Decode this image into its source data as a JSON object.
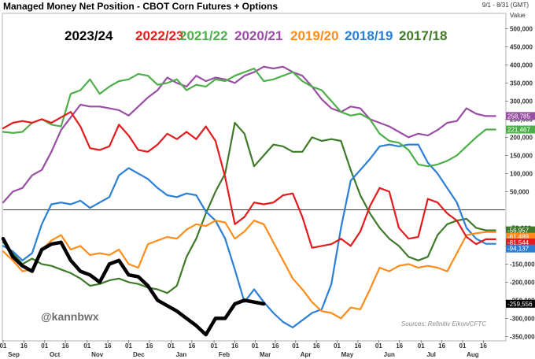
{
  "title": "Managed Money Net Position - CBOT Corn Futures + Options",
  "date_range": "9/1 - 8/31 (GMT)",
  "value_header": "Value",
  "handle": "@kannbwx",
  "source": "Sources: Refinitiv Eikon/CFTC",
  "chart_data": {
    "type": "line",
    "title": "Managed Money Net Position - CBOT Corn Futures + Options",
    "ylabel": "Value",
    "ylim": [
      -360000,
      540000
    ],
    "y_ticks": [
      500000,
      450000,
      400000,
      350000,
      300000,
      250000,
      200000,
      150000,
      100000,
      50000,
      -50000,
      -100000,
      -150000,
      -200000,
      -250000,
      -300000,
      -350000
    ],
    "y_tick_labels": [
      "500,000",
      "450,000",
      "400,000",
      "350,000",
      "300,000",
      "250,000",
      "200,000",
      "150,000",
      "100,000",
      "50,000",
      "-50,000",
      "-100,000",
      "-150,000",
      "-200,000",
      "-250,000",
      "-300,000",
      "-350,000"
    ],
    "x_unit": "weeks from Sep 1",
    "xlim": [
      0,
      52
    ],
    "x_tick_labels": [
      "01",
      "16",
      "01",
      "16",
      "01",
      "16",
      "01",
      "16",
      "01",
      "16",
      "01",
      "16",
      "01",
      "16",
      "01",
      "16",
      "01",
      "16",
      "01",
      "16",
      "01",
      "16",
      "01",
      "16"
    ],
    "x_ticks": [
      0,
      2.15,
      4.3,
      6.45,
      8.7,
      10.85,
      13.0,
      15.15,
      17.4,
      19.55,
      21.85,
      24.0,
      26.1,
      28.2,
      30.3,
      32.45,
      34.6,
      36.75,
      38.9,
      41.05,
      43.3,
      45.45,
      47.6,
      49.75
    ],
    "months": [
      "Sep",
      "Oct",
      "Nov",
      "Dec",
      "Jan",
      "Feb",
      "Mar",
      "Apr",
      "May",
      "Jun",
      "Jul",
      "Aug"
    ],
    "month_positions": [
      1.1,
      5.35,
      9.75,
      14.05,
      18.45,
      22.9,
      27.15,
      31.35,
      35.65,
      40.0,
      44.35,
      48.65
    ],
    "legend": [
      "2023/24",
      "2022/23",
      "2021/22",
      "2020/21",
      "2019/20",
      "2018/19",
      "2017/18"
    ],
    "legend_position": "top",
    "grid": false,
    "zero_line": true,
    "last_value_labels": [
      "258,785",
      "221,467",
      "-56,957",
      "-61,489",
      "-81,544",
      "-94,137",
      "-259,556"
    ],
    "series": [
      {
        "name": "2023/24",
        "color": "#000000",
        "x": [
          0,
          1,
          2,
          3,
          4,
          5,
          6,
          7,
          8,
          9,
          10,
          11,
          12,
          13,
          14,
          15,
          16,
          17,
          18,
          19,
          20,
          21,
          22,
          23,
          24,
          25,
          26,
          27
        ],
        "y": [
          -80000,
          -130000,
          -155000,
          -170000,
          -110000,
          -95000,
          -90000,
          -140000,
          -170000,
          -180000,
          -200000,
          -150000,
          -140000,
          -180000,
          -185000,
          -210000,
          -250000,
          -265000,
          -280000,
          -300000,
          -320000,
          -345000,
          -300000,
          -300000,
          -260000,
          -250000,
          -255000,
          -260000
        ]
      },
      {
        "name": "2022/23",
        "color": "#e41a1c",
        "x": [
          0,
          1,
          2,
          3,
          4,
          5,
          6,
          7,
          8,
          9,
          10,
          11,
          12,
          13,
          14,
          15,
          16,
          17,
          18,
          19,
          20,
          21,
          22,
          23,
          24,
          25,
          26,
          27,
          28,
          29,
          30,
          31,
          32,
          33,
          34,
          35,
          36,
          37,
          38,
          39,
          40,
          41,
          42,
          43,
          44,
          45,
          46,
          47,
          48,
          49,
          50,
          51
        ],
        "y": [
          225000,
          240000,
          245000,
          240000,
          250000,
          240000,
          255000,
          270000,
          230000,
          170000,
          165000,
          175000,
          235000,
          205000,
          165000,
          160000,
          180000,
          210000,
          195000,
          215000,
          195000,
          230000,
          190000,
          90000,
          -40000,
          -20000,
          20000,
          15000,
          20000,
          40000,
          45000,
          -20000,
          -105000,
          -100000,
          -95000,
          -80000,
          -100000,
          -60000,
          10000,
          60000,
          50000,
          -50000,
          -80000,
          -75000,
          30000,
          20000,
          -10000,
          -30000,
          -75000,
          -95000,
          -81544,
          -81544
        ]
      },
      {
        "name": "2021/22",
        "color": "#4daf4a",
        "x": [
          0,
          1,
          2,
          3,
          4,
          5,
          6,
          7,
          8,
          9,
          10,
          11,
          12,
          13,
          14,
          15,
          16,
          17,
          18,
          19,
          20,
          21,
          22,
          23,
          24,
          25,
          26,
          27,
          28,
          29,
          30,
          31,
          32,
          33,
          34,
          35,
          36,
          37,
          38,
          39,
          40,
          41,
          42,
          43,
          44,
          45,
          46,
          47,
          48,
          49,
          50,
          51
        ],
        "y": [
          215000,
          212000,
          215000,
          240000,
          250000,
          235000,
          230000,
          320000,
          330000,
          360000,
          320000,
          340000,
          355000,
          360000,
          375000,
          370000,
          345000,
          350000,
          360000,
          330000,
          345000,
          340000,
          360000,
          355000,
          370000,
          380000,
          390000,
          355000,
          360000,
          370000,
          380000,
          355000,
          340000,
          330000,
          300000,
          270000,
          260000,
          265000,
          250000,
          210000,
          190000,
          185000,
          165000,
          125000,
          120000,
          125000,
          135000,
          150000,
          175000,
          200000,
          221467,
          221467
        ]
      },
      {
        "name": "2020/21",
        "color": "#984ea3",
        "x": [
          0,
          1,
          2,
          3,
          4,
          5,
          6,
          7,
          8,
          9,
          10,
          11,
          12,
          13,
          14,
          15,
          16,
          17,
          18,
          19,
          20,
          21,
          22,
          23,
          24,
          25,
          26,
          27,
          28,
          29,
          30,
          31,
          32,
          33,
          34,
          35,
          36,
          37,
          38,
          39,
          40,
          41,
          42,
          43,
          44,
          45,
          46,
          47,
          48,
          49,
          50,
          51
        ],
        "y": [
          20000,
          50000,
          60000,
          95000,
          110000,
          160000,
          220000,
          255000,
          290000,
          285000,
          285000,
          280000,
          275000,
          260000,
          285000,
          310000,
          330000,
          365000,
          350000,
          340000,
          370000,
          355000,
          365000,
          360000,
          350000,
          370000,
          380000,
          395000,
          390000,
          395000,
          380000,
          370000,
          340000,
          305000,
          280000,
          270000,
          285000,
          280000,
          250000,
          240000,
          230000,
          215000,
          200000,
          210000,
          205000,
          220000,
          240000,
          245000,
          280000,
          265000,
          258785,
          258785
        ]
      },
      {
        "name": "2019/20",
        "color": "#ff8c1a",
        "x": [
          0,
          1,
          2,
          3,
          4,
          5,
          6,
          7,
          8,
          9,
          10,
          11,
          12,
          13,
          14,
          15,
          16,
          17,
          18,
          19,
          20,
          21,
          22,
          23,
          24,
          25,
          26,
          27,
          28,
          29,
          30,
          31,
          32,
          33,
          34,
          35,
          36,
          37,
          38,
          39,
          40,
          41,
          42,
          43,
          44,
          45,
          46,
          47,
          48,
          49,
          50,
          51
        ],
        "y": [
          -115000,
          -140000,
          -170000,
          -165000,
          -110000,
          -85000,
          -70000,
          -110000,
          -100000,
          -125000,
          -120000,
          -125000,
          -110000,
          -150000,
          -160000,
          -95000,
          -85000,
          -75000,
          -80000,
          -55000,
          -40000,
          -45000,
          -30000,
          -35000,
          -80000,
          -60000,
          -30000,
          -40000,
          -90000,
          -140000,
          -190000,
          -220000,
          -255000,
          -280000,
          -285000,
          -300000,
          -270000,
          -275000,
          -220000,
          -160000,
          -170000,
          -155000,
          -150000,
          -160000,
          -155000,
          -160000,
          -170000,
          -120000,
          -70000,
          -65000,
          -61489,
          -61489
        ]
      },
      {
        "name": "2018/19",
        "color": "#2a7fd4",
        "x": [
          0,
          1,
          2,
          3,
          4,
          5,
          6,
          7,
          8,
          9,
          10,
          11,
          12,
          13,
          14,
          15,
          16,
          17,
          18,
          19,
          20,
          21,
          22,
          23,
          24,
          25,
          26,
          27,
          28,
          29,
          30,
          31,
          32,
          33,
          34,
          35,
          36,
          37,
          38,
          39,
          40,
          41,
          42,
          43,
          44,
          45,
          46,
          47,
          48,
          49,
          50,
          51
        ],
        "y": [
          -100000,
          -115000,
          -140000,
          -120000,
          -40000,
          15000,
          20000,
          15000,
          25000,
          5000,
          20000,
          35000,
          95000,
          115000,
          100000,
          85000,
          60000,
          40000,
          35000,
          45000,
          40000,
          -5000,
          -30000,
          -80000,
          -165000,
          -255000,
          -220000,
          -255000,
          -285000,
          -310000,
          -325000,
          -305000,
          -285000,
          -275000,
          -205000,
          -50000,
          80000,
          110000,
          140000,
          175000,
          180000,
          175000,
          180000,
          180000,
          130000,
          100000,
          60000,
          20000,
          -50000,
          -80000,
          -94137,
          -94137
        ]
      },
      {
        "name": "2017/18",
        "color": "#3e7a2a",
        "x": [
          0,
          1,
          2,
          3,
          4,
          5,
          6,
          7,
          8,
          9,
          10,
          11,
          12,
          13,
          14,
          15,
          16,
          17,
          18,
          19,
          20,
          21,
          22,
          23,
          24,
          25,
          26,
          27,
          28,
          29,
          30,
          31,
          32,
          33,
          34,
          35,
          36,
          37,
          38,
          39,
          40,
          41,
          42,
          43,
          44,
          45,
          46,
          47,
          48,
          49,
          50,
          51
        ],
        "y": [
          -90000,
          -120000,
          -150000,
          -135000,
          -150000,
          -155000,
          -165000,
          -175000,
          -190000,
          -210000,
          -205000,
          -195000,
          -190000,
          -200000,
          -205000,
          -215000,
          -220000,
          -230000,
          -210000,
          -130000,
          -80000,
          -10000,
          50000,
          100000,
          240000,
          210000,
          120000,
          150000,
          180000,
          175000,
          160000,
          160000,
          200000,
          190000,
          195000,
          190000,
          110000,
          40000,
          -10000,
          -50000,
          -80000,
          -100000,
          -130000,
          -140000,
          -130000,
          -70000,
          -40000,
          -30000,
          -25000,
          -50000,
          -56957,
          -56957
        ]
      }
    ]
  }
}
